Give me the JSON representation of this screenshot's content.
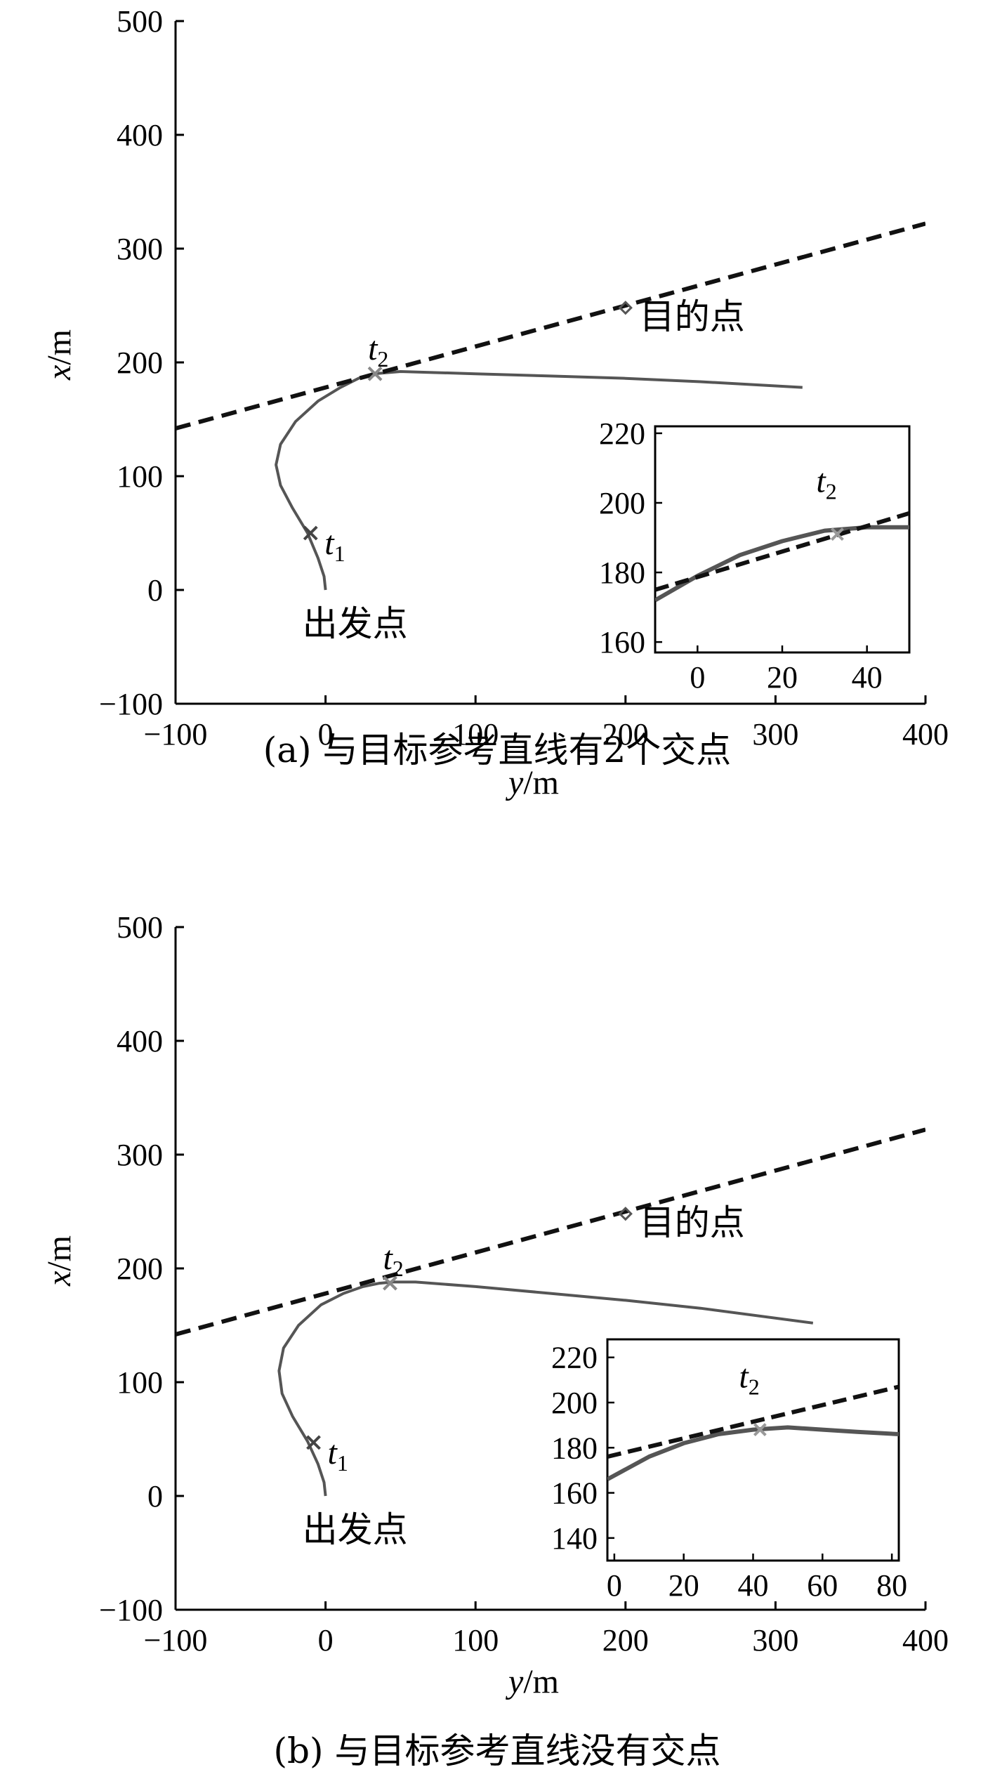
{
  "chart_data": [
    {
      "type": "line",
      "caption": "(a) 与目标参考直线有2个交点",
      "xlabel": "y/m",
      "ylabel": "x/m",
      "xlim": [
        -100,
        400
      ],
      "ylim": [
        -100,
        500
      ],
      "xticks": [
        "−100",
        "0",
        "100",
        "200",
        "300",
        "400"
      ],
      "yticks": [
        "−100",
        "0",
        "100",
        "200",
        "300",
        "400",
        "500"
      ],
      "series": [
        {
          "style": "solid",
          "x": [
            0,
            -1,
            -5,
            -12,
            -22,
            -30,
            -33,
            -30,
            -20,
            -5,
            10,
            22,
            32,
            50,
            100,
            150,
            200,
            250,
            318
          ],
          "y": [
            0,
            12,
            28,
            50,
            72,
            92,
            110,
            128,
            148,
            166,
            178,
            186,
            190,
            192,
            190,
            188,
            186,
            183,
            178
          ]
        },
        {
          "style": "dashed",
          "x": [
            -100,
            400
          ],
          "y": [
            142,
            322
          ]
        }
      ],
      "markers": [
        {
          "name": "t1",
          "x": -10,
          "y": 50
        },
        {
          "name": "t2",
          "x": 33,
          "y": 190
        },
        {
          "name": "goal",
          "x": 200,
          "y": 248
        }
      ],
      "annotations": {
        "start": "出发点",
        "goal": "目的点",
        "t1": "t",
        "t1_sub": "1",
        "t2": "t",
        "t2_sub": "2"
      },
      "inset": {
        "xlim": [
          -10,
          50
        ],
        "ylim": [
          157,
          222
        ],
        "xticks": [
          "0",
          "20",
          "40"
        ],
        "yticks": [
          "160",
          "180",
          "200",
          "220"
        ],
        "label": "t",
        "label_sub": "2",
        "solid_x": [
          -10,
          0,
          10,
          20,
          30,
          40,
          50
        ],
        "solid_y": [
          172,
          179,
          185,
          189,
          192,
          193,
          193
        ],
        "dashed_x": [
          -10,
          50
        ],
        "dashed_y": [
          175,
          197
        ],
        "marker": {
          "x": 33,
          "y": 191
        }
      }
    },
    {
      "type": "line",
      "caption": "(b) 与目标参考直线没有交点",
      "xlabel": "y/m",
      "ylabel": "x/m",
      "xlim": [
        -100,
        400
      ],
      "ylim": [
        -100,
        500
      ],
      "xticks": [
        "−100",
        "0",
        "100",
        "200",
        "300",
        "400"
      ],
      "yticks": [
        "−100",
        "0",
        "100",
        "200",
        "300",
        "400",
        "500"
      ],
      "series": [
        {
          "style": "solid",
          "x": [
            0,
            -1,
            -5,
            -12,
            -22,
            -29,
            -31,
            -28,
            -18,
            -3,
            12,
            25,
            36,
            45,
            60,
            100,
            150,
            200,
            250,
            325
          ],
          "y": [
            0,
            12,
            28,
            48,
            70,
            90,
            110,
            130,
            150,
            168,
            178,
            184,
            187,
            188,
            188,
            184,
            178,
            172,
            165,
            152
          ]
        },
        {
          "style": "dashed",
          "x": [
            -100,
            400
          ],
          "y": [
            142,
            322
          ]
        }
      ],
      "markers": [
        {
          "name": "t1",
          "x": -8,
          "y": 47
        },
        {
          "name": "t2",
          "x": 43,
          "y": 187
        },
        {
          "name": "goal",
          "x": 200,
          "y": 248
        }
      ],
      "annotations": {
        "start": "出发点",
        "goal": "目的点",
        "t1": "t",
        "t1_sub": "1",
        "t2": "t",
        "t2_sub": "2"
      },
      "inset": {
        "xlim": [
          -2,
          82
        ],
        "ylim": [
          130,
          228
        ],
        "xticks": [
          "0",
          "20",
          "40",
          "60",
          "80"
        ],
        "yticks": [
          "140",
          "160",
          "180",
          "200",
          "220"
        ],
        "label": "t",
        "label_sub": "2",
        "solid_x": [
          -2,
          10,
          20,
          30,
          40,
          50,
          60,
          70,
          82
        ],
        "solid_y": [
          166,
          176,
          182,
          186,
          188,
          189,
          188,
          187,
          186
        ],
        "dashed_x": [
          -2,
          82
        ],
        "dashed_y": [
          176,
          207
        ],
        "marker": {
          "x": 42,
          "y": 188
        }
      }
    }
  ]
}
